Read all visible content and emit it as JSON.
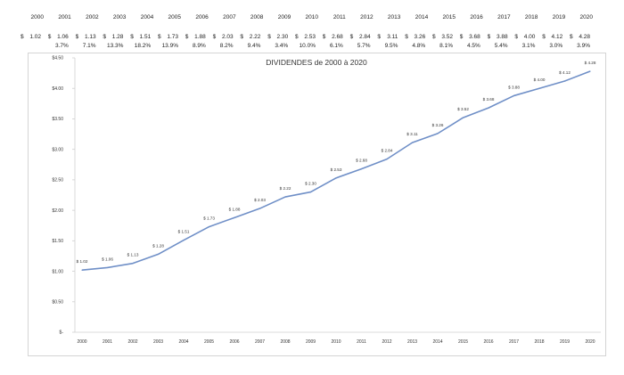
{
  "header_table": {
    "years": [
      "2000",
      "2001",
      "2002",
      "2003",
      "2004",
      "2005",
      "2006",
      "2007",
      "2008",
      "2009",
      "2010",
      "2011",
      "2012",
      "2013",
      "2014",
      "2015",
      "2016",
      "2017",
      "2018",
      "2019",
      "2020"
    ],
    "currency_symbol": "$",
    "dividends": [
      "1.02",
      "1.06",
      "1.13",
      "1.28",
      "1.51",
      "1.73",
      "1.88",
      "2.03",
      "2.22",
      "2.30",
      "2.53",
      "2.68",
      "2.84",
      "3.11",
      "3.26",
      "3.52",
      "3.68",
      "3.88",
      "4.00",
      "4.12",
      "4.28"
    ],
    "growth": [
      "",
      "3.7%",
      "7.1%",
      "13.3%",
      "18.2%",
      "13.9%",
      "8.9%",
      "8.2%",
      "9.4%",
      "3.4%",
      "10.0%",
      "6.1%",
      "5.7%",
      "9.5%",
      "4.8%",
      "8.1%",
      "4.5%",
      "5.4%",
      "3.1%",
      "3.0%",
      "3.9%"
    ]
  },
  "chart_data": {
    "type": "line",
    "title": "DIVIDENDES de  2000 à 2020",
    "xlabel": "",
    "ylabel": "",
    "categories": [
      "2000",
      "2001",
      "2002",
      "2003",
      "2004",
      "2005",
      "2006",
      "2007",
      "2008",
      "2009",
      "2010",
      "2011",
      "2012",
      "2013",
      "2014",
      "2015",
      "2016",
      "2017",
      "2018",
      "2019",
      "2020"
    ],
    "values": [
      1.02,
      1.06,
      1.13,
      1.28,
      1.51,
      1.73,
      1.88,
      2.03,
      2.22,
      2.3,
      2.53,
      2.68,
      2.84,
      3.11,
      3.26,
      3.52,
      3.68,
      3.88,
      4.0,
      4.12,
      4.28
    ],
    "data_labels": [
      "$ 1.02",
      "$ 1.06",
      "$ 1.13",
      "$ 1.28",
      "$ 1.51",
      "$ 1.73",
      "$ 1.88",
      "$ 2.03",
      "$ 2.22",
      "$ 2.30",
      "$ 2.53",
      "$ 2.68",
      "$ 2.84",
      "$ 3.11",
      "$ 3.26",
      "$ 3.52",
      "$ 3.68",
      "$ 3.88",
      "$ 4.00",
      "$ 4.12",
      "$ 4.28"
    ],
    "ylim": [
      0,
      4.5
    ],
    "y_ticks": [
      0,
      0.5,
      1.0,
      1.5,
      2.0,
      2.5,
      3.0,
      3.5,
      4.0,
      4.5
    ],
    "y_tick_labels": [
      "$-",
      "$0.50",
      "$1.00",
      "$1.50",
      "$2.00",
      "$2.50",
      "$3.00",
      "$3.50",
      "$4.00",
      "$4.50"
    ],
    "grid": false,
    "legend": "none",
    "line_color": "#6f8fc7"
  }
}
